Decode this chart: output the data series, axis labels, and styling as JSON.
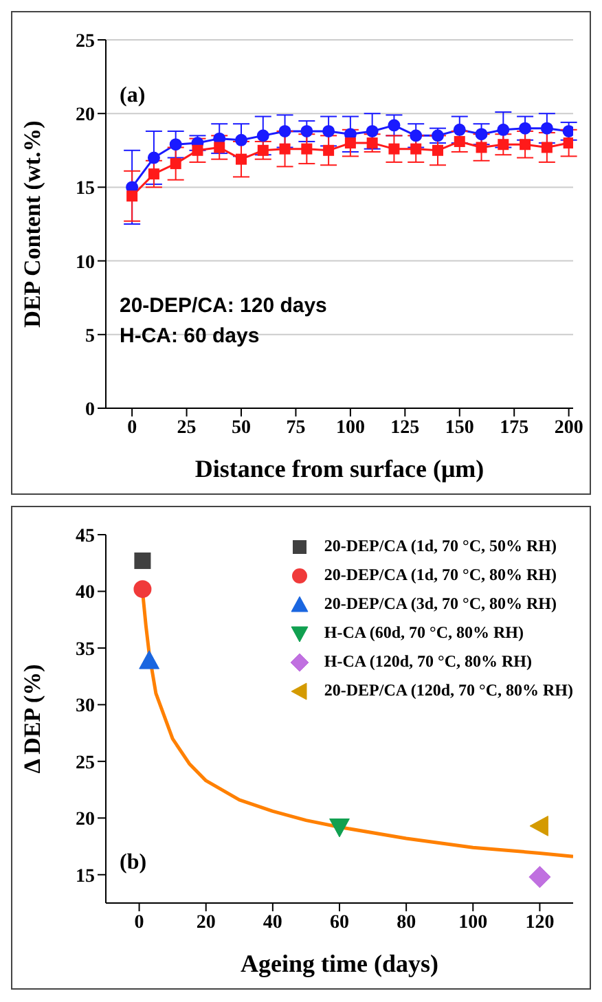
{
  "chart_data": [
    {
      "type": "line",
      "xlabel": "Distance from surface (μm)",
      "ylabel": "DEP Content (wt.%)",
      "annotations": [
        "(a)",
        "20-DEP/CA: 120 days",
        "H-CA: 60 days"
      ],
      "x": [
        0,
        10,
        20,
        30,
        40,
        50,
        60,
        70,
        80,
        90,
        100,
        110,
        120,
        130,
        140,
        150,
        160,
        170,
        180,
        190,
        200
      ],
      "series": [
        {
          "color": "#1a1aff",
          "marker": "circle",
          "values": [
            15.0,
            17.0,
            17.9,
            18.0,
            18.3,
            18.2,
            18.5,
            18.8,
            18.8,
            18.8,
            18.6,
            18.8,
            19.2,
            18.5,
            18.5,
            18.9,
            18.6,
            18.9,
            19.0,
            19.0,
            18.8
          ],
          "errors": [
            2.5,
            1.8,
            0.9,
            0.5,
            1.0,
            1.1,
            1.3,
            1.1,
            0.7,
            1.0,
            1.2,
            1.2,
            0.7,
            0.8,
            0.5,
            0.9,
            0.7,
            1.2,
            0.8,
            1.0,
            0.6
          ]
        },
        {
          "color": "#ff1a1a",
          "marker": "square",
          "values": [
            14.4,
            15.9,
            16.6,
            17.5,
            17.7,
            16.9,
            17.5,
            17.6,
            17.6,
            17.5,
            18.0,
            18.0,
            17.6,
            17.6,
            17.5,
            18.1,
            17.7,
            17.9,
            17.9,
            17.7,
            18.0
          ],
          "errors": [
            1.7,
            0.9,
            1.1,
            0.8,
            0.8,
            1.2,
            0.6,
            1.2,
            1.0,
            1.0,
            0.9,
            0.6,
            0.9,
            0.9,
            1.0,
            0.7,
            0.9,
            0.7,
            0.9,
            1.0,
            0.9
          ]
        }
      ],
      "xlim": [
        -12,
        202
      ],
      "xticks": [
        0,
        25,
        50,
        75,
        100,
        125,
        150,
        175,
        200
      ],
      "ylim": [
        0,
        25
      ],
      "yticks": [
        0,
        5,
        10,
        15,
        20,
        25
      ],
      "grid": "y",
      "line_style": "solid",
      "legend": false
    },
    {
      "type": "scatter",
      "xlabel": "Ageing time (days)",
      "ylabel": "Δ DEP (%)",
      "annotations": [
        "(b)"
      ],
      "series": [
        {
          "name": "20-DEP/CA (1d, 70 °C, 50% RH)",
          "color": "#404040",
          "marker": "square",
          "x": [
            1
          ],
          "values": [
            42.7
          ]
        },
        {
          "name": "20-DEP/CA (1d, 70 °C, 80% RH)",
          "color": "#f03a3a",
          "marker": "circle",
          "x": [
            1
          ],
          "values": [
            40.2
          ]
        },
        {
          "name": "20-DEP/CA (3d, 70 °C, 80% RH)",
          "color": "#1a66e0",
          "marker": "triangle",
          "x": [
            3
          ],
          "values": [
            33.9
          ]
        },
        {
          "name": "H-CA (60d, 70 °C, 80% RH)",
          "color": "#10a050",
          "marker": "triangle-down",
          "x": [
            60
          ],
          "values": [
            19.2
          ]
        },
        {
          "name": "H-CA (120d, 70 °C, 80% RH)",
          "color": "#c070e0",
          "marker": "diamond",
          "x": [
            120
          ],
          "values": [
            14.8
          ]
        },
        {
          "name": "20-DEP/CA (120d, 70 °C, 80% RH)",
          "color": "#d49a00",
          "marker": "triangle-left",
          "x": [
            120
          ],
          "values": [
            19.3
          ]
        },
        {
          "type": "line",
          "color": "#ff8000",
          "marker": "none",
          "x": [
            1,
            2,
            3,
            5,
            10,
            15,
            20,
            30,
            40,
            50,
            60,
            80,
            100,
            120,
            130
          ],
          "values": [
            40,
            37,
            34.5,
            31,
            27,
            24.8,
            23.3,
            21.6,
            20.6,
            19.8,
            19.2,
            18.2,
            17.4,
            16.9,
            16.6
          ]
        }
      ],
      "xlim": [
        -10,
        130
      ],
      "xticks": [
        0,
        20,
        40,
        60,
        80,
        100,
        120
      ],
      "ylim": [
        12.5,
        45
      ],
      "yticks": [
        15,
        20,
        25,
        30,
        35,
        40,
        45
      ],
      "grid": false,
      "legend": "top right"
    }
  ]
}
